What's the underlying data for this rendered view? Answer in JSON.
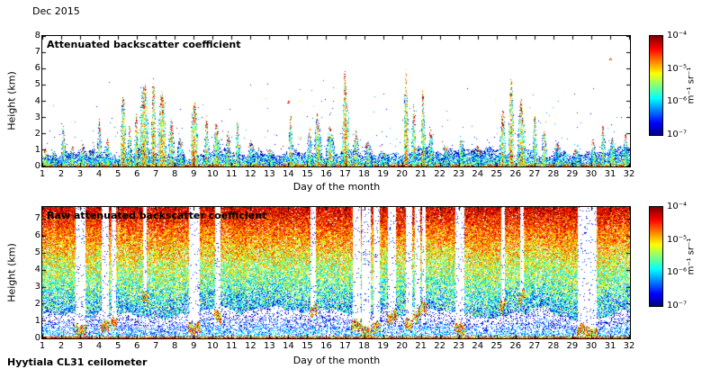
{
  "figure": {
    "title": "Dec 2015",
    "footer": "Hyytiala CL31 ceilometer",
    "background": "#ffffff"
  },
  "colorbar": {
    "unit_label": "m⁻¹ sr⁻¹",
    "ticks": [
      "10⁻⁴",
      "10⁻⁵",
      "10⁻⁶",
      "10⁻⁷"
    ],
    "colormap": "jet",
    "scale_min": 1e-07,
    "scale_max": 0.0001
  },
  "chart_data": [
    {
      "type": "heatmap",
      "title": "Attenuated backscatter coefficient",
      "xlabel": "Day of the month",
      "ylabel": "Height (km)",
      "xlim": [
        1,
        32
      ],
      "ylim": [
        0,
        8
      ],
      "xticks": [
        1,
        2,
        3,
        4,
        5,
        6,
        7,
        8,
        9,
        10,
        11,
        12,
        13,
        14,
        15,
        16,
        17,
        18,
        19,
        20,
        21,
        22,
        23,
        24,
        25,
        26,
        27,
        28,
        29,
        30,
        31,
        32
      ],
      "yticks": [
        0,
        1,
        2,
        3,
        4,
        5,
        6,
        7,
        8
      ],
      "colorscale": {
        "min": 1e-07,
        "max": 0.0001,
        "log": true,
        "unit": "m⁻¹ sr⁻¹",
        "colormap": "jet"
      },
      "boundary_layer": {
        "min_top_km": 0.3,
        "max_top_km": 1.4
      },
      "cloud_events": [
        {
          "day": 1.15,
          "top": 1.3,
          "w": 0.25,
          "i": 0.75
        },
        {
          "day": 1.6,
          "top": 0.9,
          "w": 0.3,
          "i": 0.55
        },
        {
          "day": 2.1,
          "top": 2.3,
          "w": 0.2,
          "i": 0.7
        },
        {
          "day": 2.55,
          "top": 1.2,
          "w": 0.3,
          "i": 0.6
        },
        {
          "day": 3.1,
          "top": 1.5,
          "w": 0.3,
          "i": 0.65
        },
        {
          "day": 3.6,
          "top": 1.0,
          "w": 0.3,
          "i": 0.5
        },
        {
          "day": 4.0,
          "top": 2.6,
          "w": 0.2,
          "i": 0.65
        },
        {
          "day": 4.45,
          "top": 1.7,
          "w": 0.3,
          "i": 0.6
        },
        {
          "day": 5.25,
          "top": 4.3,
          "w": 0.25,
          "i": 0.9
        },
        {
          "day": 5.6,
          "top": 2.4,
          "w": 0.2,
          "i": 0.7
        },
        {
          "day": 5.95,
          "top": 3.3,
          "w": 0.2,
          "i": 0.8
        },
        {
          "day": 6.35,
          "top": 4.6,
          "w": 0.45,
          "i": 0.9
        },
        {
          "day": 6.85,
          "top": 5.0,
          "w": 0.2,
          "i": 1.0
        },
        {
          "day": 7.3,
          "top": 4.4,
          "w": 0.4,
          "i": 0.9
        },
        {
          "day": 7.8,
          "top": 3.0,
          "w": 0.25,
          "i": 0.8
        },
        {
          "day": 8.3,
          "top": 1.9,
          "w": 0.3,
          "i": 0.6
        },
        {
          "day": 9.0,
          "top": 4.0,
          "w": 0.35,
          "i": 1.0
        },
        {
          "day": 9.65,
          "top": 2.6,
          "w": 0.25,
          "i": 0.7
        },
        {
          "day": 10.2,
          "top": 3.0,
          "w": 0.3,
          "i": 0.8
        },
        {
          "day": 10.8,
          "top": 2.1,
          "w": 0.25,
          "i": 0.7
        },
        {
          "day": 11.3,
          "top": 2.6,
          "w": 0.2,
          "i": 0.7
        },
        {
          "day": 12.0,
          "top": 1.5,
          "w": 0.45,
          "i": 0.5
        },
        {
          "day": 13.0,
          "top": 1.2,
          "w": 0.5,
          "i": 0.5
        },
        {
          "day": 14.1,
          "top": 2.9,
          "w": 0.15,
          "i": 0.8
        },
        {
          "day": 15.1,
          "top": 2.6,
          "w": 0.2,
          "i": 0.7
        },
        {
          "day": 15.55,
          "top": 3.1,
          "w": 0.35,
          "i": 0.8
        },
        {
          "day": 16.2,
          "top": 2.4,
          "w": 0.4,
          "i": 0.75
        },
        {
          "day": 17.0,
          "top": 5.3,
          "w": 0.3,
          "i": 1.0
        },
        {
          "day": 17.55,
          "top": 2.6,
          "w": 0.25,
          "i": 0.8
        },
        {
          "day": 18.2,
          "top": 1.6,
          "w": 0.4,
          "i": 0.6
        },
        {
          "day": 19.0,
          "top": 1.0,
          "w": 0.5,
          "i": 0.5
        },
        {
          "day": 20.2,
          "top": 6.0,
          "w": 0.2,
          "i": 1.0
        },
        {
          "day": 20.6,
          "top": 3.6,
          "w": 0.2,
          "i": 0.8
        },
        {
          "day": 21.1,
          "top": 4.2,
          "w": 0.15,
          "i": 0.9
        },
        {
          "day": 21.5,
          "top": 2.0,
          "w": 0.25,
          "i": 0.6
        },
        {
          "day": 22.3,
          "top": 1.3,
          "w": 0.4,
          "i": 0.5
        },
        {
          "day": 23.1,
          "top": 1.9,
          "w": 0.3,
          "i": 0.6
        },
        {
          "day": 24.0,
          "top": 1.2,
          "w": 0.5,
          "i": 0.5
        },
        {
          "day": 25.3,
          "top": 3.6,
          "w": 0.25,
          "i": 0.85
        },
        {
          "day": 25.75,
          "top": 4.6,
          "w": 0.25,
          "i": 1.0
        },
        {
          "day": 26.3,
          "top": 4.2,
          "w": 0.35,
          "i": 0.9
        },
        {
          "day": 27.0,
          "top": 3.2,
          "w": 0.2,
          "i": 0.8
        },
        {
          "day": 27.5,
          "top": 2.2,
          "w": 0.25,
          "i": 0.7
        },
        {
          "day": 28.2,
          "top": 1.3,
          "w": 0.4,
          "i": 0.5
        },
        {
          "day": 29.2,
          "top": 1.0,
          "w": 0.5,
          "i": 0.5
        },
        {
          "day": 30.1,
          "top": 1.6,
          "w": 0.3,
          "i": 0.6
        },
        {
          "day": 30.6,
          "top": 2.5,
          "w": 0.15,
          "i": 0.7
        },
        {
          "day": 31.1,
          "top": 1.6,
          "w": 0.3,
          "i": 0.7
        },
        {
          "day": 31.8,
          "top": 2.1,
          "w": 0.2,
          "i": 0.7
        }
      ],
      "spots": [
        {
          "day": 31.0,
          "alt": 6.55
        },
        {
          "day": 14.0,
          "alt": 3.9
        }
      ]
    },
    {
      "type": "heatmap",
      "title": "Raw attenuated backscatter coefficient",
      "xlabel": "Day of the month",
      "ylabel": "Height (km)",
      "xlim": [
        1,
        32
      ],
      "ylim": [
        0,
        7.7
      ],
      "xticks": [
        1,
        2,
        3,
        4,
        5,
        6,
        7,
        8,
        9,
        10,
        11,
        12,
        13,
        14,
        15,
        16,
        17,
        18,
        19,
        20,
        21,
        22,
        23,
        24,
        25,
        26,
        27,
        28,
        29,
        30,
        31,
        32
      ],
      "yticks": [
        0,
        1,
        2,
        3,
        4,
        5,
        6,
        7
      ],
      "colorscale": {
        "min": 1e-07,
        "max": 0.0001,
        "log": true,
        "unit": "m⁻¹ sr⁻¹",
        "colormap": "jet"
      },
      "noise_profile": {
        "low_region_top_km": [
          0.9,
          2.1
        ]
      },
      "attenuation_gaps": [
        {
          "day": 3.0,
          "w": 0.45,
          "base": 0.7
        },
        {
          "day": 4.3,
          "w": 0.3,
          "base": 0.9
        },
        {
          "day": 4.75,
          "w": 0.2,
          "base": 1.2
        },
        {
          "day": 6.4,
          "w": 0.15,
          "base": 2.6
        },
        {
          "day": 9.0,
          "w": 0.5,
          "base": 0.8
        },
        {
          "day": 10.25,
          "w": 0.2,
          "base": 1.5
        },
        {
          "day": 15.3,
          "w": 0.25,
          "base": 1.8
        },
        {
          "day": 17.6,
          "w": 0.35,
          "base": 1.0
        },
        {
          "day": 18.1,
          "w": 0.45,
          "base": 0.6
        },
        {
          "day": 18.65,
          "w": 0.3,
          "base": 0.9
        },
        {
          "day": 19.45,
          "w": 0.35,
          "base": 1.4
        },
        {
          "day": 20.35,
          "w": 0.25,
          "base": 1.2
        },
        {
          "day": 20.8,
          "w": 0.2,
          "base": 1.6
        },
        {
          "day": 21.15,
          "w": 0.15,
          "base": 2.0
        },
        {
          "day": 23.05,
          "w": 0.45,
          "base": 0.8
        },
        {
          "day": 25.3,
          "w": 0.15,
          "base": 2.2
        },
        {
          "day": 26.3,
          "w": 0.15,
          "base": 2.4
        },
        {
          "day": 29.5,
          "w": 0.4,
          "base": 0.7
        },
        {
          "day": 30.0,
          "w": 0.45,
          "base": 0.5
        }
      ]
    }
  ],
  "render": {
    "seed": 20151231
  }
}
